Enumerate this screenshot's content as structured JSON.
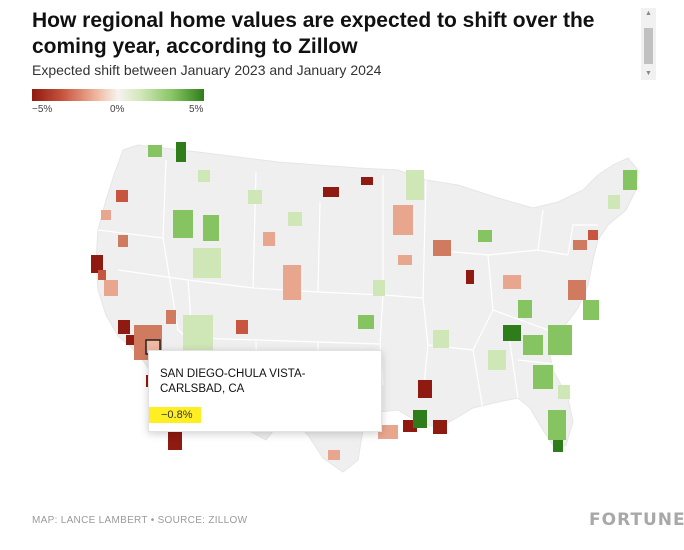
{
  "title": "How regional home values are expected to shift over the coming year, according to Zillow",
  "subtitle": "Expected shift between January 2023 and January 2024",
  "legend": {
    "min_label": "−5%",
    "mid_label": "0%",
    "max_label": "5%",
    "colors": [
      "#8e1a12",
      "#c8553f",
      "#f0b9a1",
      "#f7f3ef",
      "#cfe6b7",
      "#86c462",
      "#2f7d1a"
    ]
  },
  "tooltip": {
    "region": "San Diego-Chula Vista-Carlsbad, CA",
    "value": "−0.8%"
  },
  "footer": "MAP: LANCE LAMBERT • SOURCE: ZILLOW",
  "brand": "FORTUNE",
  "colors": {
    "land": "#efefef",
    "border": "#ffffff",
    "strong_decline": "#8e1a12",
    "decline": "#c8553f",
    "mild_decline": "#f0b9a1",
    "mild_growth": "#cfe6b7",
    "growth": "#86c462",
    "strong_growth": "#2f7d1a"
  }
}
